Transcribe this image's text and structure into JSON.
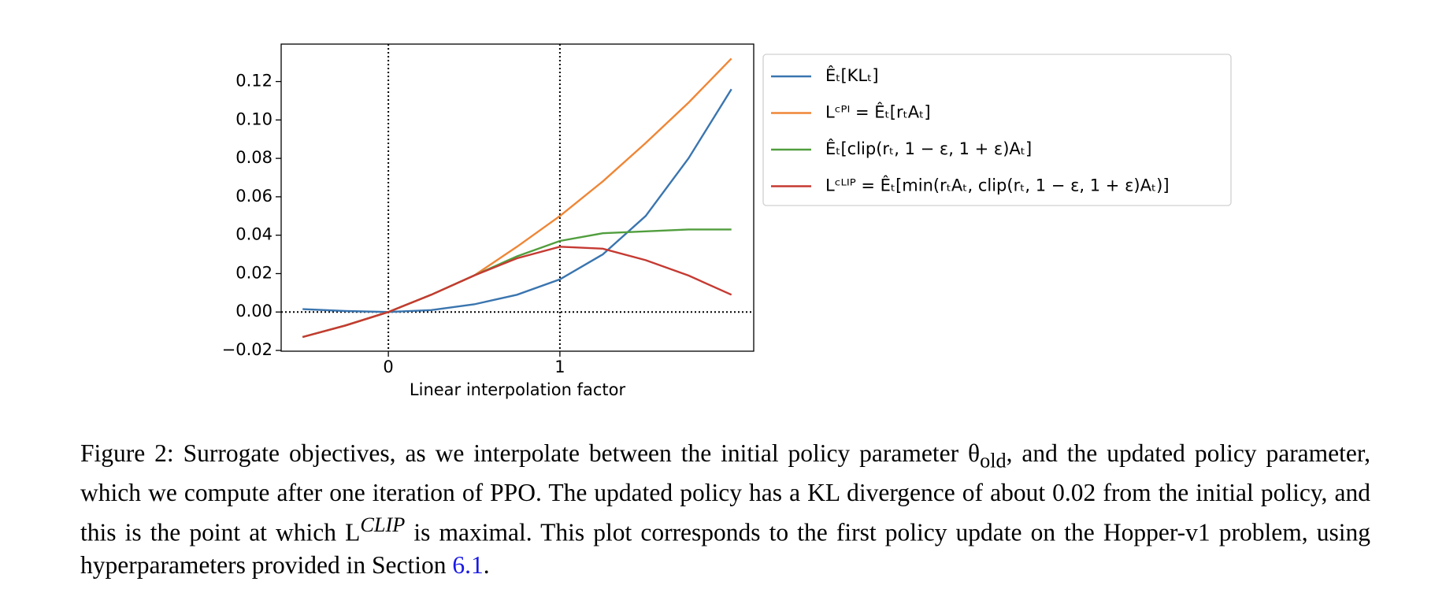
{
  "chart_data": {
    "type": "line",
    "x_label": "Linear interpolation factor",
    "x": [
      -0.5,
      -0.25,
      0,
      0.25,
      0.5,
      0.75,
      1.0,
      1.25,
      1.5,
      1.75,
      2.0
    ],
    "series": [
      {
        "name": "Êₜ[KLₜ]",
        "color": "#3a75af",
        "values": [
          0.0015,
          0.0005,
          0,
          0.001,
          0.004,
          0.009,
          0.017,
          0.03,
          0.05,
          0.08,
          0.116
        ]
      },
      {
        "name": "Lᶜᴾᴵ = Êₜ[rₜAₜ]",
        "color": "#ef8636",
        "values": [
          -0.013,
          -0.007,
          0,
          0.009,
          0.019,
          0.034,
          0.05,
          0.068,
          0.088,
          0.109,
          0.132
        ]
      },
      {
        "name": "Êₜ[clip(rₜ, 1 − ε, 1 + ε)Aₜ]",
        "color": "#519e3e",
        "values": [
          -0.013,
          -0.007,
          0,
          0.009,
          0.019,
          0.029,
          0.037,
          0.041,
          0.042,
          0.043,
          0.043
        ]
      },
      {
        "name": "Lᶜᴸᴵᴾ = Êₜ[min(rₜAₜ, clip(rₜ, 1 − ε, 1 + ε)Aₜ)]",
        "color": "#c53a32",
        "values": [
          -0.013,
          -0.007,
          0,
          0.009,
          0.019,
          0.028,
          0.034,
          0.033,
          0.027,
          0.019,
          0.009
        ]
      }
    ],
    "xlim": [
      -0.625,
      2.13
    ],
    "xticks": [
      0,
      1
    ],
    "ylim": [
      -0.0204,
      0.1395
    ],
    "yticks": [
      {
        "value": -0.02,
        "label": "−0.02"
      },
      {
        "value": 0,
        "label": "0.00"
      },
      {
        "value": 0.02,
        "label": "0.02"
      },
      {
        "value": 0.04,
        "label": "0.04"
      },
      {
        "value": 0.06,
        "label": "0.06"
      },
      {
        "value": 0.08,
        "label": "0.08"
      },
      {
        "value": 0.1,
        "label": "0.10"
      },
      {
        "value": 0.12,
        "label": "0.12"
      }
    ],
    "vlines": [
      0,
      1
    ],
    "hlines": [
      0
    ],
    "legend": "outside-right"
  },
  "caption": {
    "text1": "Figure 2: Surrogate objectives, as we interpolate between the initial policy parameter θ",
    "sub": "old",
    "text2": ", and the updated policy parameter, which we compute after one iteration of PPO. The updated policy has a KL divergence of about 0.02 from the initial policy, and this is the point at which L",
    "sup": "CLIP",
    "text3": " is maximal. This plot corresponds to the first policy update on the Hopper-v1 problem, using hyperparameters provided in Section ",
    "link": "6.1",
    "text4": "."
  }
}
